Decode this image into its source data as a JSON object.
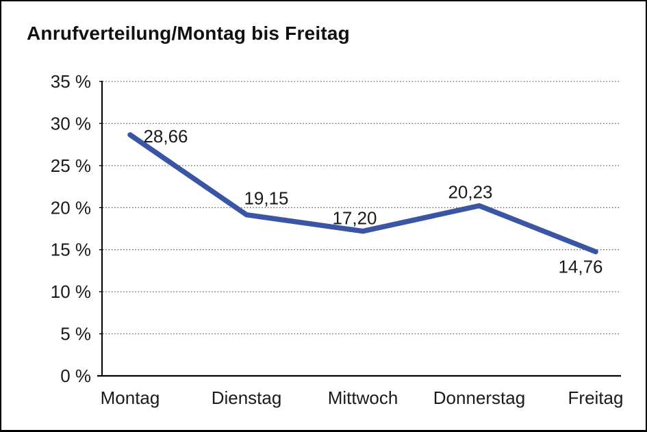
{
  "window": {
    "background": "#ffffff",
    "border_color": "#000000"
  },
  "chart_data": {
    "type": "line",
    "title": "Anrufverteilung/Montag bis Freitag",
    "categories": [
      "Montag",
      "Dienstag",
      "Mittwoch",
      "Donnerstag",
      "Freitag"
    ],
    "series": [
      {
        "name": "Anrufverteilung",
        "values": [
          28.66,
          19.15,
          17.2,
          20.23,
          14.76
        ]
      }
    ],
    "point_labels": [
      "28,66",
      "19,15",
      "17,20",
      "20,23",
      "14,76"
    ],
    "xlabel": "",
    "ylabel": "",
    "ylim": [
      0,
      35
    ],
    "y_ticks": [
      {
        "value": 35,
        "label": "35 %"
      },
      {
        "value": 30,
        "label": "30 %"
      },
      {
        "value": 25,
        "label": "25 %"
      },
      {
        "value": 20,
        "label": "20 %"
      },
      {
        "value": 15,
        "label": "15 %"
      },
      {
        "value": 10,
        "label": "10 %"
      },
      {
        "value": 5,
        "label": "5 %"
      },
      {
        "value": 0,
        "label": "0 %"
      }
    ],
    "grid": "horizontal-dotted",
    "legend": "none",
    "colors": {
      "line": "#3A55A4",
      "text": "#1a1a1a",
      "grid": "#666666",
      "axis": "#000000"
    }
  }
}
